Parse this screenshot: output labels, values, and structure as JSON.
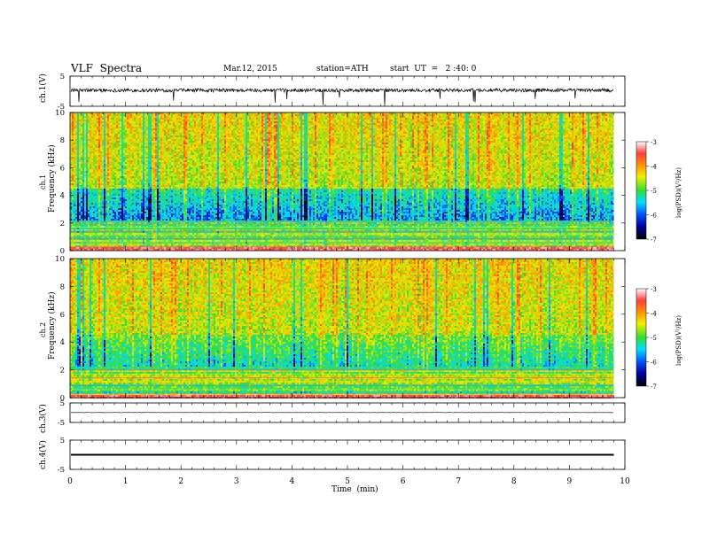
{
  "header": {
    "title": "VLF  Spectra",
    "date": "Mar.12, 2015",
    "station": "station=ATH",
    "start": "start  UT  =   2 :40: 0"
  },
  "chart_data": [
    {
      "type": "line",
      "panel": "ch1-waveform",
      "ylabel": "ch.1(V)",
      "ylim": [
        -5,
        5
      ],
      "yticks": [
        "5",
        "-5"
      ],
      "baseline": 0.3,
      "noise_amplitude": 0.6,
      "xlim": [
        0,
        10
      ]
    },
    {
      "type": "heatmap",
      "panel": "ch1-spectrogram",
      "ylabel": "Frequency  (kHz)",
      "channel_label": "ch.1",
      "ylim": [
        0,
        10
      ],
      "yticks": [
        "0",
        "2",
        "4",
        "6",
        "8",
        "10"
      ],
      "xlim": [
        0,
        10
      ],
      "data_end_min": 9.8,
      "colorbar_label": "log(PSD)(V²/Hz)",
      "colorbar_ticks": [
        "-3",
        "-4",
        "-5",
        "-6",
        "-7"
      ],
      "color_range": [
        -7,
        -3
      ]
    },
    {
      "type": "heatmap",
      "panel": "ch2-spectrogram",
      "ylabel": "Frequency  (kHz)",
      "channel_label": "ch.2",
      "ylim": [
        0,
        10
      ],
      "yticks": [
        "0",
        "2",
        "4",
        "6",
        "8",
        "10"
      ],
      "xlim": [
        0,
        10
      ],
      "data_end_min": 9.8,
      "colorbar_label": "log(PSD)(V²/Hz)",
      "colorbar_ticks": [
        "-3",
        "-4",
        "-5",
        "-6",
        "-7"
      ],
      "color_range": [
        -7,
        -3
      ]
    },
    {
      "type": "line",
      "panel": "ch3-waveform",
      "ylabel": "ch.3(V)",
      "ylim": [
        -5,
        5
      ],
      "yticks": [
        "5",
        "-5"
      ],
      "baseline": 0.1,
      "noise_amplitude": 0.1
    },
    {
      "type": "line",
      "panel": "ch4-waveform",
      "ylabel": "ch.4(V)",
      "ylim": [
        -5,
        5
      ],
      "yticks": [
        "5",
        "-5"
      ],
      "baseline": 0.0,
      "noise_amplitude": 0.2,
      "xlabel": "Time  (min)",
      "xticks": [
        "0",
        "1",
        "2",
        "3",
        "4",
        "5",
        "6",
        "7",
        "8",
        "9",
        "10"
      ]
    }
  ]
}
